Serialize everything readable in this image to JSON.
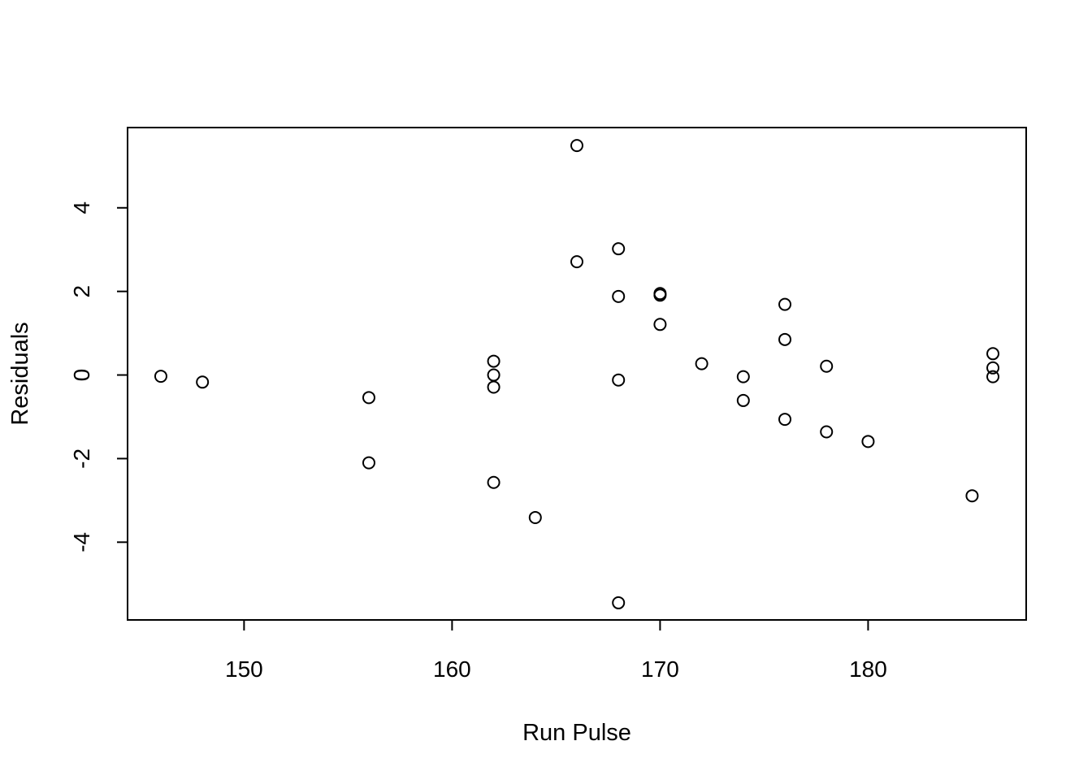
{
  "chart_data": {
    "type": "scatter",
    "title": "",
    "xlabel": "Run Pulse",
    "ylabel": "Residuals",
    "xlim": [
      144.4,
      187.6
    ],
    "ylim": [
      -5.86,
      5.92
    ],
    "xticks": [
      150,
      160,
      170,
      180
    ],
    "yticks": [
      -4,
      -2,
      0,
      2,
      4
    ],
    "grid": false,
    "legend": "none",
    "marker": "open-circle",
    "colors": {
      "marker": "#000000",
      "axis": "#000000",
      "background": "#ffffff"
    },
    "points": [
      {
        "x": 146,
        "y": -0.03
      },
      {
        "x": 148,
        "y": -0.17
      },
      {
        "x": 156,
        "y": -0.54
      },
      {
        "x": 156,
        "y": -2.1
      },
      {
        "x": 162,
        "y": 0.33
      },
      {
        "x": 162,
        "y": 0.0
      },
      {
        "x": 162,
        "y": -0.29
      },
      {
        "x": 162,
        "y": -2.57
      },
      {
        "x": 164,
        "y": -3.41
      },
      {
        "x": 166,
        "y": 5.49
      },
      {
        "x": 166,
        "y": 2.71
      },
      {
        "x": 168,
        "y": 3.02
      },
      {
        "x": 168,
        "y": 1.88
      },
      {
        "x": 168,
        "y": -0.12
      },
      {
        "x": 168,
        "y": -5.45
      },
      {
        "x": 170,
        "y": 1.95
      },
      {
        "x": 170,
        "y": 1.91
      },
      {
        "x": 170,
        "y": 1.21
      },
      {
        "x": 172,
        "y": 0.27
      },
      {
        "x": 174,
        "y": -0.04
      },
      {
        "x": 174,
        "y": -0.61
      },
      {
        "x": 176,
        "y": 1.69
      },
      {
        "x": 176,
        "y": 0.85
      },
      {
        "x": 176,
        "y": -1.06
      },
      {
        "x": 178,
        "y": 0.21
      },
      {
        "x": 178,
        "y": -1.36
      },
      {
        "x": 180,
        "y": -1.59
      },
      {
        "x": 185,
        "y": -2.89
      },
      {
        "x": 186,
        "y": 0.51
      },
      {
        "x": 186,
        "y": 0.17
      },
      {
        "x": 186,
        "y": -0.04
      }
    ]
  }
}
